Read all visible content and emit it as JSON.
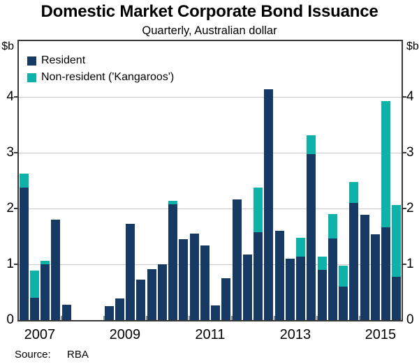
{
  "title": "Domestic Market Corporate Bond Issuance",
  "subtitle": "Quarterly, Australian dollar",
  "axis": {
    "y_unit_left": "$b",
    "y_unit_right": "$b",
    "y_ticks": [
      0,
      1,
      2,
      3,
      4
    ],
    "y_max": 5,
    "x_year_labels": [
      "2007",
      "2009",
      "2011",
      "2013",
      "2015"
    ],
    "x_year_label_slots": [
      0,
      8,
      16,
      24,
      32
    ],
    "year_boundary_tick_slots": [
      4,
      8,
      12,
      16,
      20,
      24,
      28,
      32
    ]
  },
  "legend": {
    "items": [
      {
        "label": "Resident",
        "color": "#163A64"
      },
      {
        "label": "Non-resident ('Kangaroos')",
        "color": "#0FB2A9"
      }
    ]
  },
  "source": {
    "label": "Source:",
    "value": "RBA"
  },
  "colors": {
    "resident": "#163A64",
    "non_resident": "#0FB2A9",
    "gridline": "#c9c9c9",
    "axis_frame": "#383838"
  },
  "chart_data": {
    "type": "bar",
    "stacked": true,
    "title": "Domestic Market Corporate Bond Issuance",
    "subtitle": "Quarterly, Australian dollar",
    "ylabel": "$b",
    "ylim": [
      0,
      5
    ],
    "gridlines": [
      1,
      2,
      3,
      4
    ],
    "legend_position": "top-left",
    "categories": [
      "2007 Q1",
      "2007 Q2",
      "2007 Q3",
      "2007 Q4",
      "2008 Q1",
      "2008 Q2",
      "2008 Q3",
      "2008 Q4",
      "2009 Q1",
      "2009 Q2",
      "2009 Q3",
      "2009 Q4",
      "2010 Q1",
      "2010 Q2",
      "2010 Q3",
      "2010 Q4",
      "2011 Q1",
      "2011 Q2",
      "2011 Q3",
      "2011 Q4",
      "2012 Q1",
      "2012 Q2",
      "2012 Q3",
      "2012 Q4",
      "2013 Q1",
      "2013 Q2",
      "2013 Q3",
      "2013 Q4",
      "2014 Q1",
      "2014 Q2",
      "2014 Q3",
      "2014 Q4",
      "2015 Q1",
      "2015 Q2",
      "2015 Q3",
      "2015 Q4"
    ],
    "series": [
      {
        "name": "Resident",
        "color": "#163A64",
        "values": [
          2.37,
          0.4,
          1.0,
          1.8,
          0.27,
          0,
          0,
          0,
          0.25,
          0.39,
          1.72,
          0.73,
          0.91,
          1.0,
          2.07,
          1.45,
          1.55,
          1.34,
          0.26,
          0.75,
          2.16,
          1.18,
          1.57,
          4.14,
          1.6,
          1.1,
          1.14,
          2.98,
          0.9,
          1.46,
          0.6,
          2.1,
          1.89,
          1.54,
          1.66,
          0.77
        ]
      },
      {
        "name": "Non-resident ('Kangaroos')",
        "color": "#0FB2A9",
        "values": [
          0.26,
          0.49,
          0.06,
          0,
          0,
          0,
          0,
          0,
          0,
          0,
          0,
          0,
          0,
          0,
          0.07,
          0,
          0,
          0,
          0,
          0,
          0,
          0,
          0.81,
          0,
          0,
          0,
          0.34,
          0.33,
          0.24,
          0.44,
          0.38,
          0.37,
          0,
          0,
          2.27,
          1.29
        ]
      }
    ]
  }
}
